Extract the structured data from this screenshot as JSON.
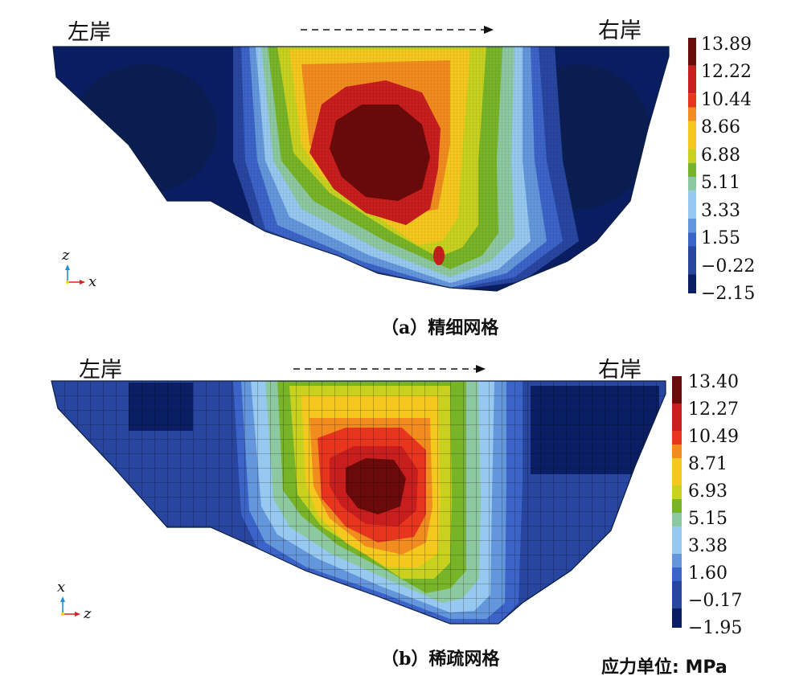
{
  "panel_a": {
    "left_bank": "左岸",
    "right_bank": "右岸",
    "caption_paren_open": "（",
    "caption_letter": "a",
    "caption_paren_close": "）",
    "caption_text": "精细网格",
    "axis_vertical": "z",
    "axis_horizontal": "x",
    "colorbar_ticks": [
      "13.89",
      "12.22",
      "10.44",
      "8.66",
      "6.88",
      "5.11",
      "3.33",
      "1.55",
      "−0.22",
      "−2.15"
    ]
  },
  "panel_b": {
    "left_bank": "左岸",
    "right_bank": "右岸",
    "caption_paren_open": "（",
    "caption_letter": "b",
    "caption_paren_close": "）",
    "caption_text": "稀疏网格",
    "axis_vertical": "x",
    "axis_horizontal": "z",
    "colorbar_ticks": [
      "13.40",
      "12.27",
      "10.49",
      "8.71",
      "6.93",
      "5.15",
      "3.38",
      "1.60",
      "−0.17",
      "−1.95"
    ]
  },
  "unit_label": "应力单位: MPa",
  "colors": {
    "scale": [
      "#6b0a0a",
      "#c81e1e",
      "#e8351e",
      "#f28c1e",
      "#f5c81e",
      "#c8d21e",
      "#78b428",
      "#8cc8a0",
      "#96c8f0",
      "#6496dc",
      "#3c64c8",
      "#2846a0",
      "#0a1e64"
    ],
    "arrow_red": "#e02020",
    "arrow_blue": "#2090d0"
  }
}
